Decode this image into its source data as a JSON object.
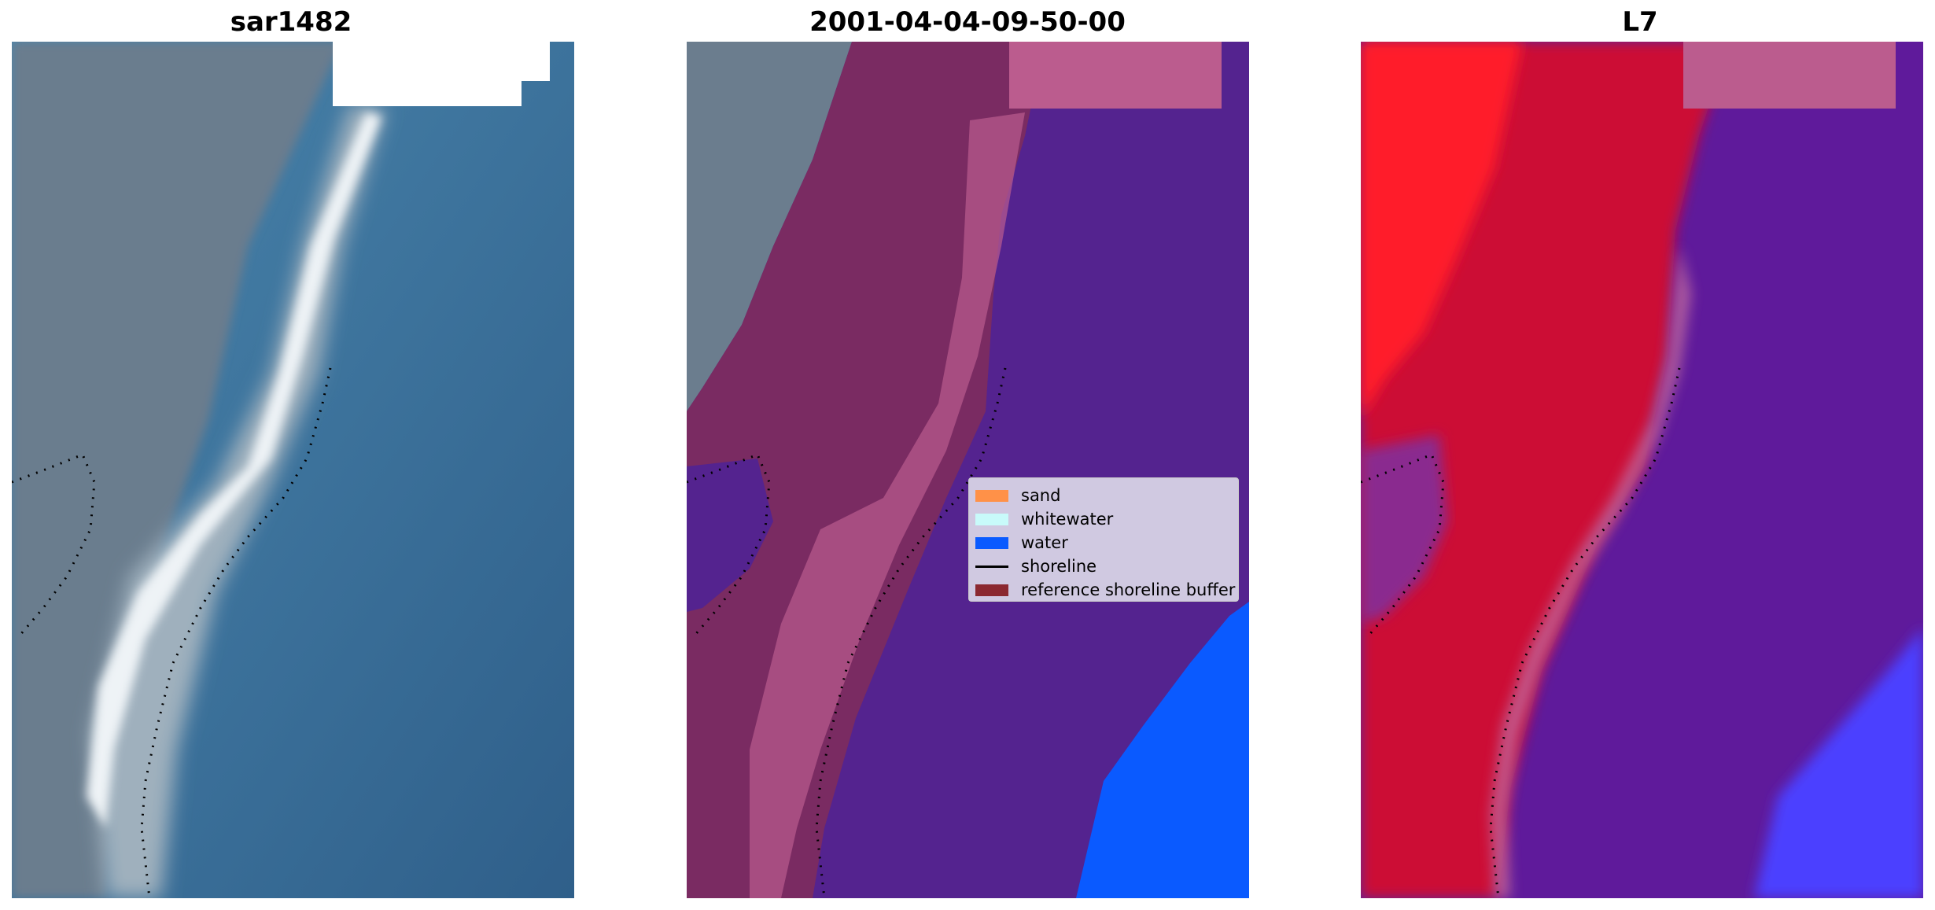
{
  "panels": [
    {
      "title": "sar1482"
    },
    {
      "title": "2001-04-04-09-50-00"
    },
    {
      "title": "L7"
    }
  ],
  "legend": {
    "items": [
      {
        "label": "sand",
        "kind": "patch",
        "color": "#ff9148"
      },
      {
        "label": "whitewater",
        "kind": "patch",
        "color": "#c8fafa"
      },
      {
        "label": "water",
        "kind": "patch",
        "color": "#0a5aff"
      },
      {
        "label": "shoreline",
        "kind": "line",
        "color": "#000000"
      },
      {
        "label": "reference shoreline buffer",
        "kind": "patch",
        "color": "#8b2830"
      }
    ]
  },
  "colors": {
    "land_gray": "#6b7d8e",
    "ocean_blue": "#3f7aa6",
    "surf_white": "#e8eef2",
    "buffer_maroon": "#7a2b62",
    "buffer_pink": "#bb5c8e",
    "water_class_purple": "#54238f",
    "water_class_blue": "#0a5aff",
    "l7_red": "#cc0c36",
    "l7_bright_red": "#ff1f2a",
    "l7_purple": "#5f1a9b",
    "l7_blue": "#4b40ff"
  }
}
